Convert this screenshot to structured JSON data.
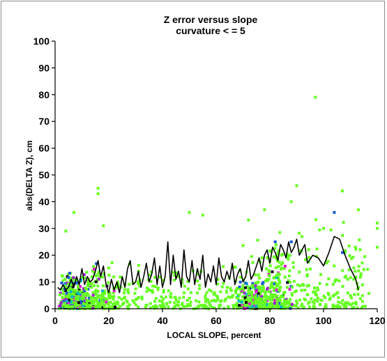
{
  "chart_data": {
    "type": "scatter",
    "title": "Z error versus slope",
    "subtitle": "curvature < = 5",
    "xlabel": "LOCAL SLOPE, percent",
    "ylabel": "abs(DELTA Z), cm",
    "xlim": [
      0,
      120
    ],
    "ylim": [
      0,
      100
    ],
    "x_ticks": [
      "0",
      "20",
      "40",
      "60",
      "80",
      "100",
      "120"
    ],
    "y_ticks": [
      "0",
      "10",
      "20",
      "30",
      "40",
      "50",
      "60",
      "70",
      "80",
      "90",
      "100"
    ],
    "grid": false,
    "colors": {
      "primary_points": "#66ff22",
      "secondary_points": [
        "#1e5bd6",
        "#9d1ccc",
        "#e01ad0",
        "#00b4c8",
        "#111111"
      ],
      "mean_line": "#000000"
    },
    "series": [
      {
        "kind": "mean_line",
        "x": [
          1,
          2,
          3,
          4,
          5,
          6,
          7,
          8,
          9,
          10,
          11,
          12,
          13,
          14,
          15,
          16,
          17,
          18,
          19,
          20,
          21,
          22,
          23,
          24,
          25,
          26,
          27,
          28,
          29,
          30,
          31,
          32,
          33,
          34,
          35,
          36,
          37,
          38,
          39,
          40,
          41,
          42,
          43,
          44,
          45,
          46,
          47,
          48,
          49,
          50,
          51,
          52,
          53,
          54,
          55,
          56,
          57,
          58,
          59,
          60,
          61,
          62,
          63,
          64,
          65,
          66,
          67,
          68,
          69,
          70,
          71,
          72,
          73,
          74,
          75,
          76,
          77,
          78,
          79,
          80,
          81,
          82,
          83,
          84,
          85,
          86,
          87,
          88,
          89,
          90,
          91,
          92,
          93,
          94,
          96,
          98,
          100,
          102,
          104,
          106,
          108,
          110,
          112,
          113
        ],
        "y": [
          8,
          7,
          9,
          7,
          8,
          11,
          8,
          12,
          9,
          15,
          9,
          12,
          10,
          11,
          14,
          18,
          12,
          16,
          9,
          6,
          11,
          7,
          10,
          6,
          12,
          8,
          15,
          18,
          9,
          10,
          14,
          8,
          12,
          17,
          10,
          13,
          19,
          9,
          16,
          8,
          12,
          25,
          9,
          20,
          11,
          14,
          8,
          22,
          12,
          10,
          18,
          9,
          15,
          11,
          20,
          8,
          13,
          10,
          16,
          9,
          19,
          12,
          10,
          14,
          11,
          17,
          9,
          13,
          15,
          10,
          12,
          18,
          11,
          13,
          16,
          19,
          14,
          20,
          22,
          17,
          23,
          21,
          18,
          24,
          22,
          19,
          25,
          21,
          23,
          26,
          20,
          22,
          24,
          17,
          20,
          19,
          16,
          21,
          27,
          26,
          20,
          15,
          11,
          7
        ]
      }
    ]
  }
}
